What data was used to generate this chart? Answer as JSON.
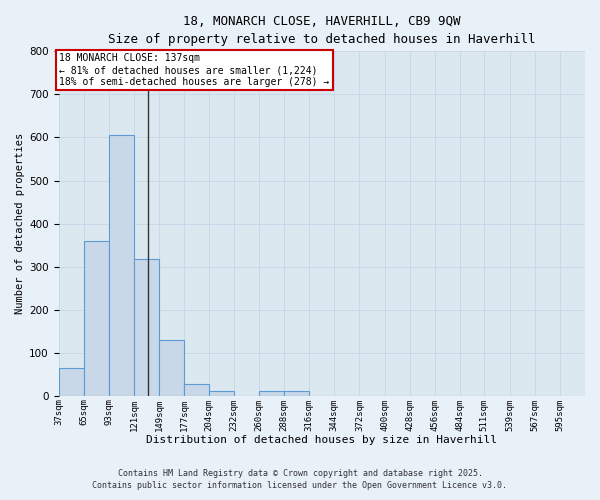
{
  "title_line1": "18, MONARCH CLOSE, HAVERHILL, CB9 9QW",
  "title_line2": "Size of property relative to detached houses in Haverhill",
  "xlabel": "Distribution of detached houses by size in Haverhill",
  "ylabel": "Number of detached properties",
  "bin_labels": [
    "37sqm",
    "65sqm",
    "93sqm",
    "121sqm",
    "149sqm",
    "177sqm",
    "204sqm",
    "232sqm",
    "260sqm",
    "288sqm",
    "316sqm",
    "344sqm",
    "372sqm",
    "400sqm",
    "428sqm",
    "456sqm",
    "484sqm",
    "511sqm",
    "539sqm",
    "567sqm",
    "595sqm"
  ],
  "bin_edges": [
    37,
    65,
    93,
    121,
    149,
    177,
    204,
    232,
    260,
    288,
    316,
    344,
    372,
    400,
    428,
    456,
    484,
    511,
    539,
    567,
    595
  ],
  "bar_values": [
    65,
    360,
    605,
    318,
    130,
    27,
    10,
    0,
    10,
    10,
    0,
    0,
    0,
    0,
    0,
    0,
    0,
    0,
    0,
    0
  ],
  "bar_color": "#c8d8e8",
  "bar_edge_color": "#5b9bd5",
  "property_size": 137,
  "vline_color": "#333333",
  "annotation_line1": "18 MONARCH CLOSE: 137sqm",
  "annotation_line2": "← 81% of detached houses are smaller (1,224)",
  "annotation_line3": "18% of semi-detached houses are larger (278) →",
  "annotation_box_color": "#ffffff",
  "annotation_box_edge_color": "#cc0000",
  "ylim": [
    0,
    800
  ],
  "yticks": [
    0,
    100,
    200,
    300,
    400,
    500,
    600,
    700,
    800
  ],
  "grid_color": "#c8d8e8",
  "bg_color": "#dce8f0",
  "fig_bg_color": "#e8f0f8",
  "footer_line1": "Contains HM Land Registry data © Crown copyright and database right 2025.",
  "footer_line2": "Contains public sector information licensed under the Open Government Licence v3.0."
}
